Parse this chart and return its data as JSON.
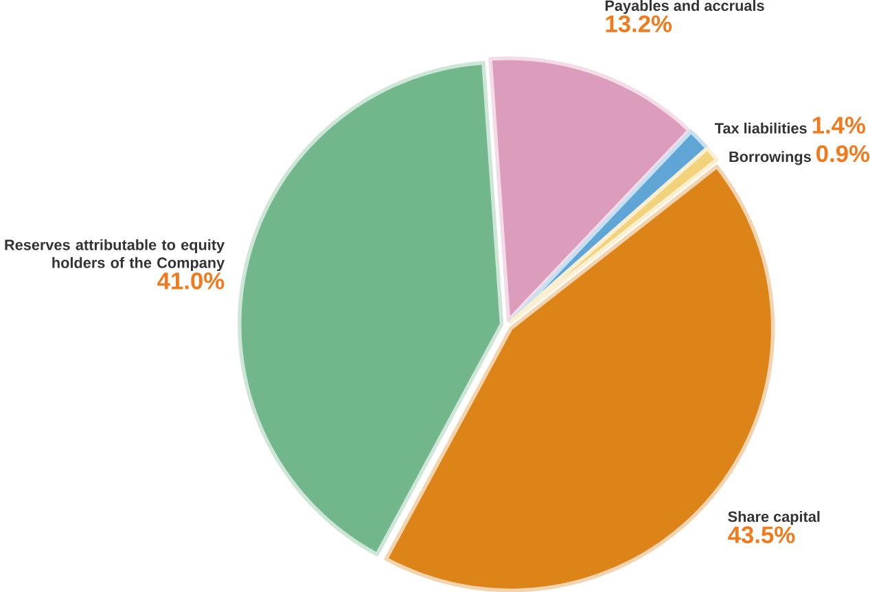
{
  "chart_data": {
    "type": "pie",
    "categories": [
      "Payables and accruals",
      "Tax liabilities",
      "Borrowings",
      "Share capital",
      "Reserves attributable to equity holders of the Company"
    ],
    "values": [
      13.2,
      1.4,
      0.9,
      43.5,
      41.0
    ],
    "value_labels": [
      "13.2%",
      "1.4%",
      "0.9%",
      "43.5%",
      "41.0%"
    ],
    "colors": [
      "#dc9cbb",
      "#5fa6d6",
      "#f2d27a",
      "#dd8419",
      "#72b78c"
    ]
  }
}
